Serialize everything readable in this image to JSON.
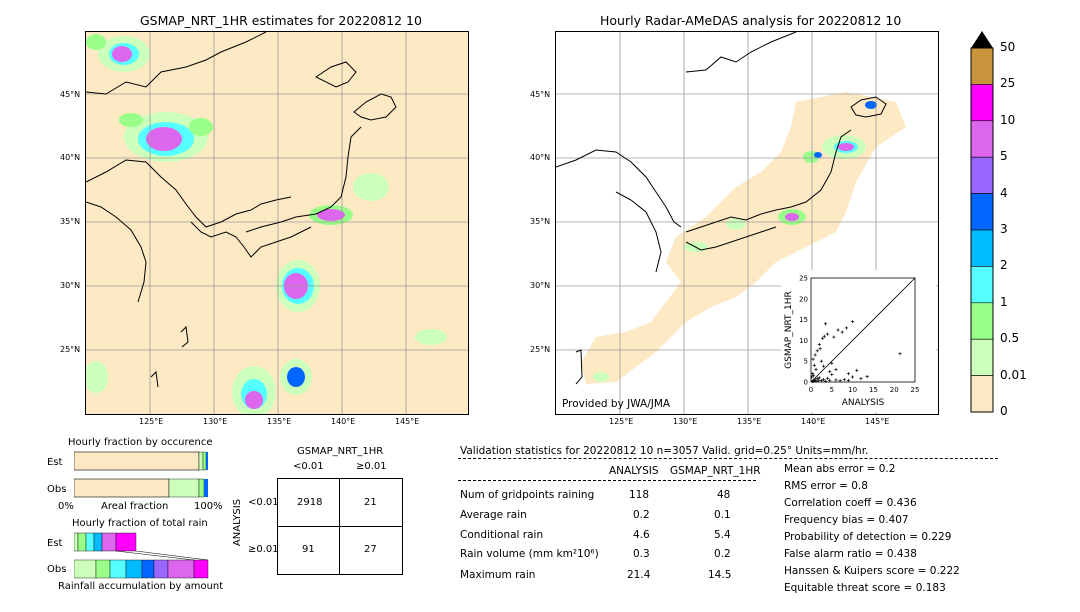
{
  "left_panel": {
    "title": "GSMAP_NRT_1HR estimates for 20220812 10",
    "lat_ticks": [
      "45°N",
      "40°N",
      "35°N",
      "30°N",
      "25°N"
    ],
    "lon_ticks": [
      "125°E",
      "130°E",
      "135°E",
      "140°E",
      "145°E"
    ]
  },
  "right_panel": {
    "title": "Hourly Radar-AMeDAS analysis for 20220812 10",
    "lat_ticks": [
      "45°N",
      "40°N",
      "35°N",
      "30°N",
      "25°N"
    ],
    "lon_ticks": [
      "125°E",
      "130°E",
      "135°E",
      "140°E",
      "145°E"
    ],
    "credit": "Provided by JWA/JMA"
  },
  "colorbar": {
    "labels": [
      "50",
      "25",
      "10",
      "5",
      "4",
      "3",
      "2",
      "1",
      "0.5",
      "0.01",
      "0"
    ],
    "colors": [
      "#c8943c",
      "#ff00ff",
      "#dd66ee",
      "#9966ff",
      "#0066ff",
      "#00bbff",
      "#55ffff",
      "#99ff88",
      "#ccffbb",
      "#fde9c4"
    ]
  },
  "fraction_charts": {
    "occurrence_title": "Hourly fraction by occurence",
    "est_label": "Est",
    "obs_label": "Obs",
    "axis_left": "0%",
    "axis_mid": "Areal fraction",
    "axis_right": "100%",
    "total_title": "Hourly fraction of total rain",
    "total_xlabel": "Rainfall accumulation by amount",
    "est2_label": "Est",
    "obs2_label": "Obs"
  },
  "contingency": {
    "header": "GSMAP_NRT_1HR",
    "col1": "<0.01",
    "col2": "≥0.01",
    "row_axis": "ANALYSIS",
    "row1": "<0.01",
    "row2": "≥0.01",
    "cells": [
      "2918",
      "21",
      "91",
      "27"
    ]
  },
  "validation": {
    "header": "Validation statistics for 20220812 10  n=3057 Valid. grid=0.25° Units=mm/hr.",
    "col_analysis": "ANALYSIS",
    "col_gsmap": "GSMAP_NRT_1HR",
    "rows": [
      {
        "label": "Num of gridpoints raining",
        "analysis": "118",
        "gsmap": "48"
      },
      {
        "label": "Average rain",
        "analysis": "0.2",
        "gsmap": "0.1"
      },
      {
        "label": "Conditional rain",
        "analysis": "4.6",
        "gsmap": "5.4"
      },
      {
        "label": "Rain volume (mm km²10⁶)",
        "analysis": "0.3",
        "gsmap": "0.2"
      },
      {
        "label": "Maximum rain",
        "analysis": "21.4",
        "gsmap": "14.5"
      }
    ],
    "scores": [
      "Mean abs error =    0.2",
      "RMS error =    0.8",
      "Correlation coeff =  0.436",
      "Frequency bias =  0.407",
      "Probability of detection =  0.229",
      "False alarm ratio =  0.438",
      "Hanssen & Kuipers score =  0.222",
      "Equitable threat score =  0.183"
    ]
  },
  "chart_data": {
    "type": "scatter",
    "xlabel": "ANALYSIS",
    "ylabel": "GSMAP_NRT_1HR",
    "xlim": [
      0,
      25
    ],
    "ylim": [
      0,
      25
    ],
    "ticks": [
      "0",
      "5",
      "10",
      "15",
      "20",
      "25"
    ],
    "points": [
      [
        0.3,
        0.2
      ],
      [
        0.5,
        0.1
      ],
      [
        0.8,
        0.3
      ],
      [
        1.0,
        0.5
      ],
      [
        1.2,
        0.2
      ],
      [
        1.5,
        0.8
      ],
      [
        0.2,
        1.2
      ],
      [
        0.4,
        2.0
      ],
      [
        0.6,
        1.5
      ],
      [
        1.8,
        0.4
      ],
      [
        2.0,
        1.0
      ],
      [
        2.5,
        0.3
      ],
      [
        3.0,
        0.6
      ],
      [
        3.5,
        0.2
      ],
      [
        4.0,
        0.9
      ],
      [
        4.5,
        0.4
      ],
      [
        5.0,
        1.8
      ],
      [
        6.0,
        0.5
      ],
      [
        7.0,
        0.3
      ],
      [
        8.0,
        0.6
      ],
      [
        9.0,
        0.4
      ],
      [
        10.0,
        1.2
      ],
      [
        12.0,
        0.8
      ],
      [
        13.5,
        1.3
      ],
      [
        0.5,
        5.5
      ],
      [
        1.0,
        6.5
      ],
      [
        1.5,
        7.5
      ],
      [
        2.0,
        9.0
      ],
      [
        2.8,
        10.5
      ],
      [
        3.2,
        11.0
      ],
      [
        4.0,
        11.5
      ],
      [
        5.5,
        10.8
      ],
      [
        6.5,
        12.5
      ],
      [
        7.5,
        12.0
      ],
      [
        8.5,
        13.0
      ],
      [
        10.0,
        14.5
      ],
      [
        3.5,
        14.0
      ],
      [
        2.2,
        8.0
      ],
      [
        1.2,
        3.0
      ],
      [
        0.8,
        4.0
      ],
      [
        21.4,
        6.8
      ],
      [
        5.0,
        4.5
      ],
      [
        6.0,
        3.0
      ],
      [
        4.5,
        2.5
      ],
      [
        3.0,
        3.8
      ],
      [
        2.5,
        5.0
      ],
      [
        9.0,
        2.0
      ],
      [
        11.0,
        2.8
      ]
    ]
  }
}
